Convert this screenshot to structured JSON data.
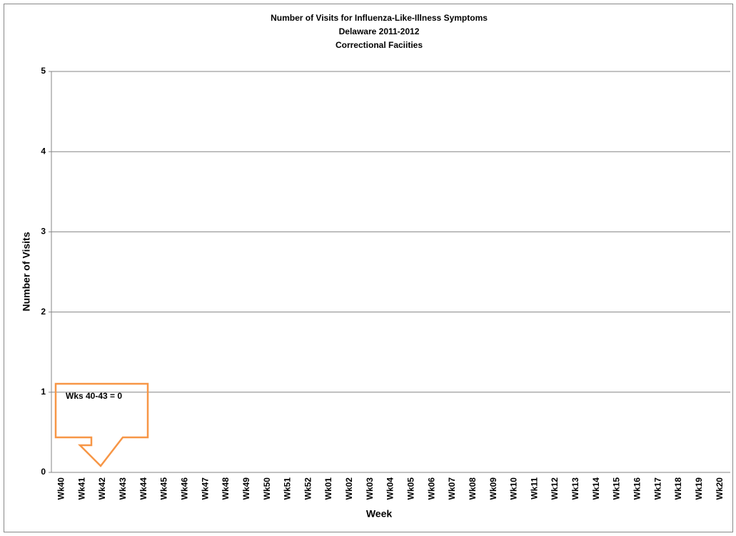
{
  "chart_data": {
    "type": "bar",
    "title": "Number of Visits for Influenza-Like-Illness Symptoms",
    "subtitle": [
      "Delaware 2011-2012",
      "Correctional Faciities"
    ],
    "x_label": "Week",
    "y_label": "Number of Visits",
    "categories": [
      "Wk40",
      "Wk41",
      "Wk42",
      "Wk43",
      "Wk44",
      "Wk45",
      "Wk46",
      "Wk47",
      "Wk48",
      "Wk49",
      "Wk50",
      "Wk51",
      "Wk52",
      "Wk01",
      "Wk02",
      "Wk03",
      "Wk04",
      "Wk05",
      "Wk06",
      "Wk07",
      "Wk08",
      "Wk09",
      "Wk10",
      "Wk11",
      "Wk12",
      "Wk13",
      "Wk14",
      "Wk15",
      "Wk16",
      "Wk17",
      "Wk18",
      "Wk19",
      "Wk20"
    ],
    "values": [
      0,
      0,
      0,
      0,
      null,
      null,
      null,
      null,
      null,
      null,
      null,
      null,
      null,
      null,
      null,
      null,
      null,
      null,
      null,
      null,
      null,
      null,
      null,
      null,
      null,
      null,
      null,
      null,
      null,
      null,
      null,
      null,
      null
    ],
    "color": "#4f81bd",
    "ylim": [
      0,
      5
    ],
    "yticks": [
      0,
      1,
      2,
      3,
      4,
      5
    ],
    "grid": true,
    "annotations": [
      "Wks 40-43  = 0"
    ]
  }
}
